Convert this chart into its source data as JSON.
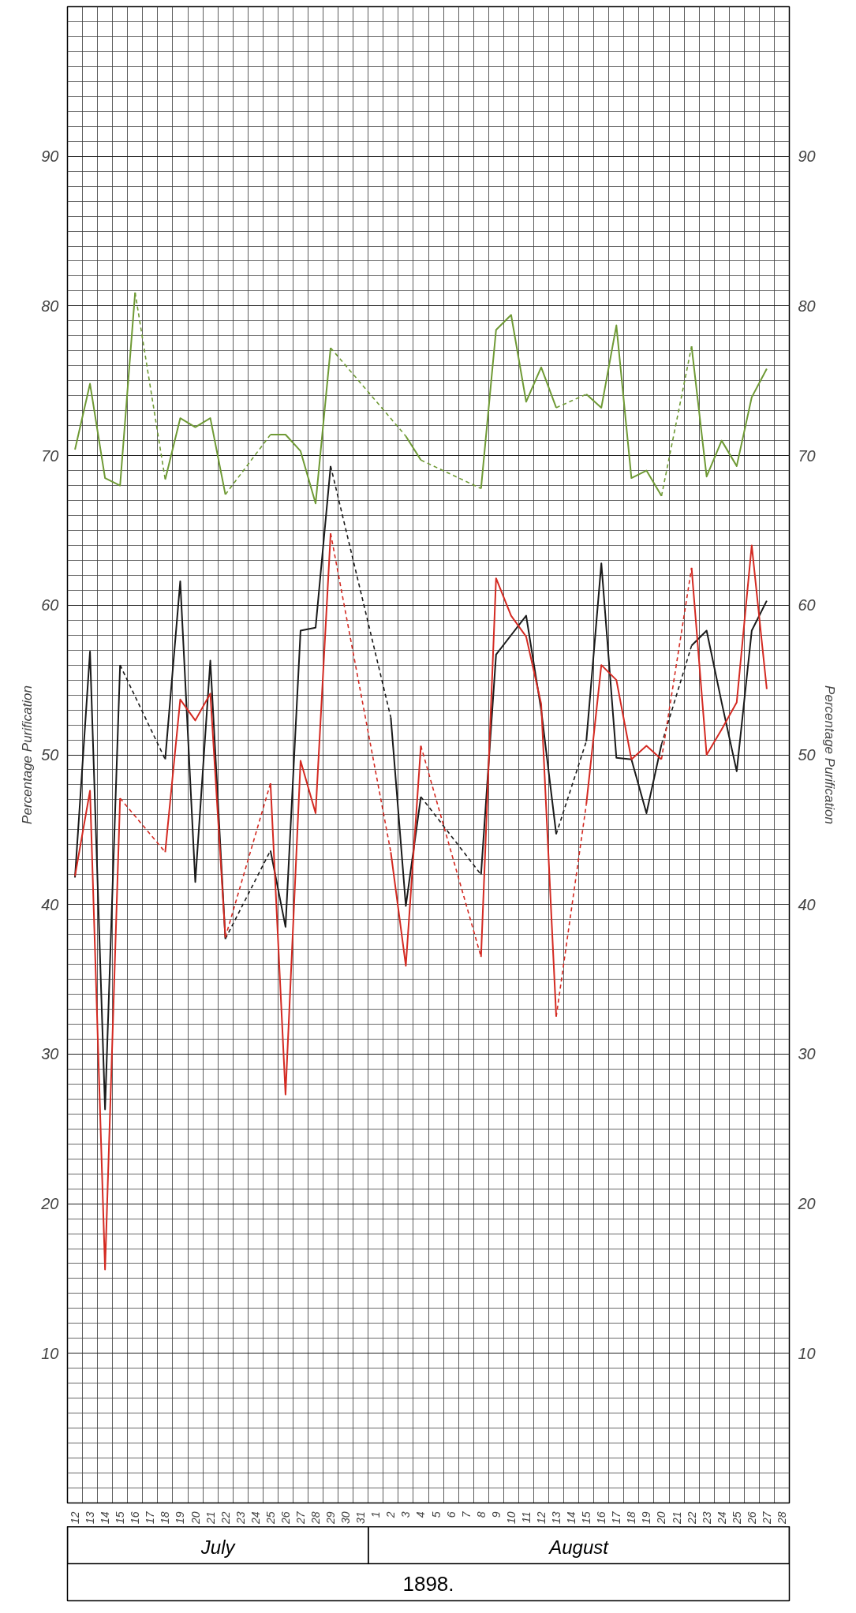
{
  "chart_data": {
    "type": "line",
    "ylabel": "Percentage Purification",
    "y2label": "Percentage Purification",
    "xlabel": "1898.",
    "annotations": [
      "July",
      "August"
    ],
    "categories": [
      "12",
      "13",
      "14",
      "15",
      "16",
      "17",
      "18",
      "19",
      "20",
      "21",
      "22",
      "23",
      "24",
      "25",
      "26",
      "27",
      "28",
      "29",
      "30",
      "31",
      "1",
      "2",
      "3",
      "4",
      "5",
      "6",
      "7",
      "8",
      "9",
      "10",
      "11",
      "12",
      "13",
      "14",
      "15",
      "16",
      "17",
      "18",
      "19",
      "20",
      "21",
      "22",
      "23",
      "24",
      "25",
      "26",
      "27",
      "28"
    ],
    "ylim": [
      0,
      100
    ],
    "yticks": [
      10,
      20,
      30,
      40,
      50,
      60,
      70,
      80,
      90
    ],
    "y2lim": [
      0,
      100
    ],
    "y2ticks": [
      10,
      20,
      30,
      40,
      50,
      60,
      70,
      80,
      90
    ],
    "grid": true,
    "series": [
      {
        "color": "#6f9a35",
        "values": [
          70.4,
          74.8,
          68.5,
          68.0,
          80.9,
          null,
          68.4,
          72.5,
          71.9,
          72.5,
          67.4,
          null,
          null,
          71.4,
          71.4,
          70.3,
          66.8,
          77.2,
          null,
          null,
          null,
          null,
          71.3,
          69.7,
          null,
          null,
          null,
          67.8,
          78.4,
          79.4,
          73.6,
          75.9,
          73.2,
          null,
          74.1,
          73.2,
          78.7,
          68.5,
          69.0,
          67.3,
          null,
          77.3,
          68.6,
          71.0,
          69.3,
          73.9,
          75.8,
          null
        ]
      },
      {
        "color": "#1a1a1a",
        "values": [
          41.8,
          56.9,
          26.3,
          56.0,
          null,
          null,
          49.7,
          61.6,
          41.5,
          56.3,
          37.7,
          null,
          null,
          43.6,
          38.5,
          58.3,
          58.5,
          69.3,
          null,
          null,
          null,
          52.5,
          39.9,
          47.2,
          null,
          null,
          null,
          42.0,
          56.7,
          58.0,
          59.3,
          53.0,
          44.7,
          null,
          50.9,
          62.8,
          49.8,
          49.7,
          46.1,
          50.7,
          null,
          57.3,
          58.3,
          53.5,
          48.9,
          58.3,
          60.3,
          null
        ]
      },
      {
        "color": "#d42a22",
        "values": [
          41.9,
          47.6,
          15.6,
          47.1,
          null,
          null,
          43.5,
          53.7,
          52.3,
          54.1,
          37.8,
          null,
          null,
          48.1,
          27.3,
          49.6,
          46.1,
          64.8,
          null,
          null,
          null,
          43.5,
          35.9,
          50.6,
          null,
          null,
          null,
          36.5,
          61.8,
          59.3,
          57.9,
          53.4,
          32.5,
          null,
          46.7,
          56.0,
          55.0,
          49.7,
          50.6,
          49.7,
          null,
          62.5,
          50.0,
          51.7,
          53.5,
          64.0,
          54.4,
          null
        ]
      }
    ]
  }
}
